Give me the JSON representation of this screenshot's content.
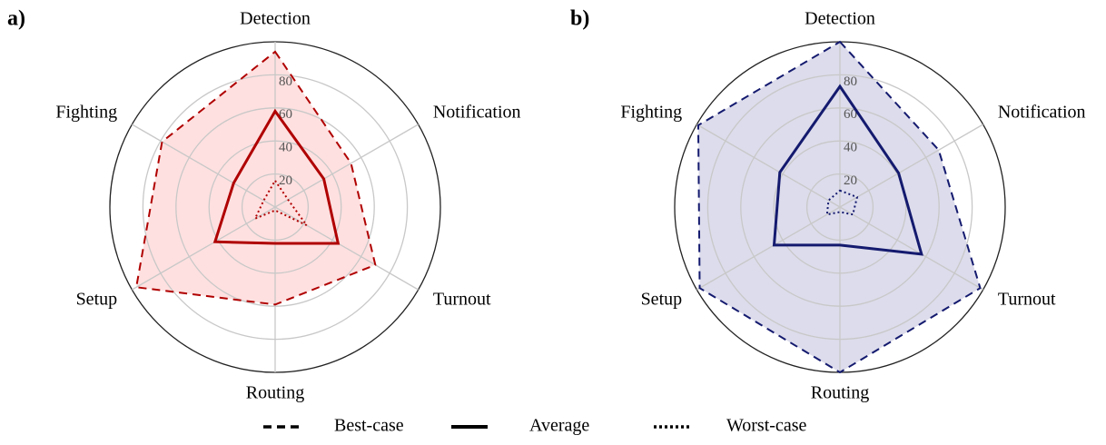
{
  "chart_data": [
    {
      "type": "radar",
      "label": "a)",
      "categories": [
        "Detection",
        "Notification",
        "Turnout",
        "Routing",
        "Setup",
        "Fighting"
      ],
      "ylim": [
        0,
        100
      ],
      "yticks": [
        20,
        40,
        60,
        80
      ],
      "grid": true,
      "series": [
        {
          "name": "Best-case",
          "color": "#b00000",
          "fill": "#ffe0e0",
          "linestyle": "dashed",
          "values": [
            94,
            53,
            70,
            59,
            97,
            79
          ]
        },
        {
          "name": "Average",
          "color": "#b00000",
          "linestyle": "solid",
          "values": [
            58,
            34,
            44,
            22,
            42,
            29
          ]
        },
        {
          "name": "Worst-case",
          "color": "#b00000",
          "linestyle": "dotted",
          "values": [
            16,
            9,
            22,
            2,
            14,
            8
          ]
        }
      ]
    },
    {
      "type": "radar",
      "label": "b)",
      "categories": [
        "Detection",
        "Notification",
        "Turnout",
        "Routing",
        "Setup",
        "Fighting"
      ],
      "ylim": [
        0,
        100
      ],
      "yticks": [
        20,
        40,
        60,
        80
      ],
      "grid": true,
      "series": [
        {
          "name": "Best-case",
          "color": "#141a6e",
          "fill": "#dcdcec",
          "linestyle": "dashed",
          "values": [
            100,
            69,
            98,
            100,
            98,
            99
          ]
        },
        {
          "name": "Average",
          "color": "#141a6e",
          "linestyle": "solid",
          "values": [
            73,
            41,
            57,
            23,
            46,
            42
          ]
        },
        {
          "name": "Worst-case",
          "color": "#141a6e",
          "linestyle": "dotted",
          "values": [
            10,
            12,
            9,
            3,
            9,
            8
          ]
        }
      ]
    }
  ]
}
